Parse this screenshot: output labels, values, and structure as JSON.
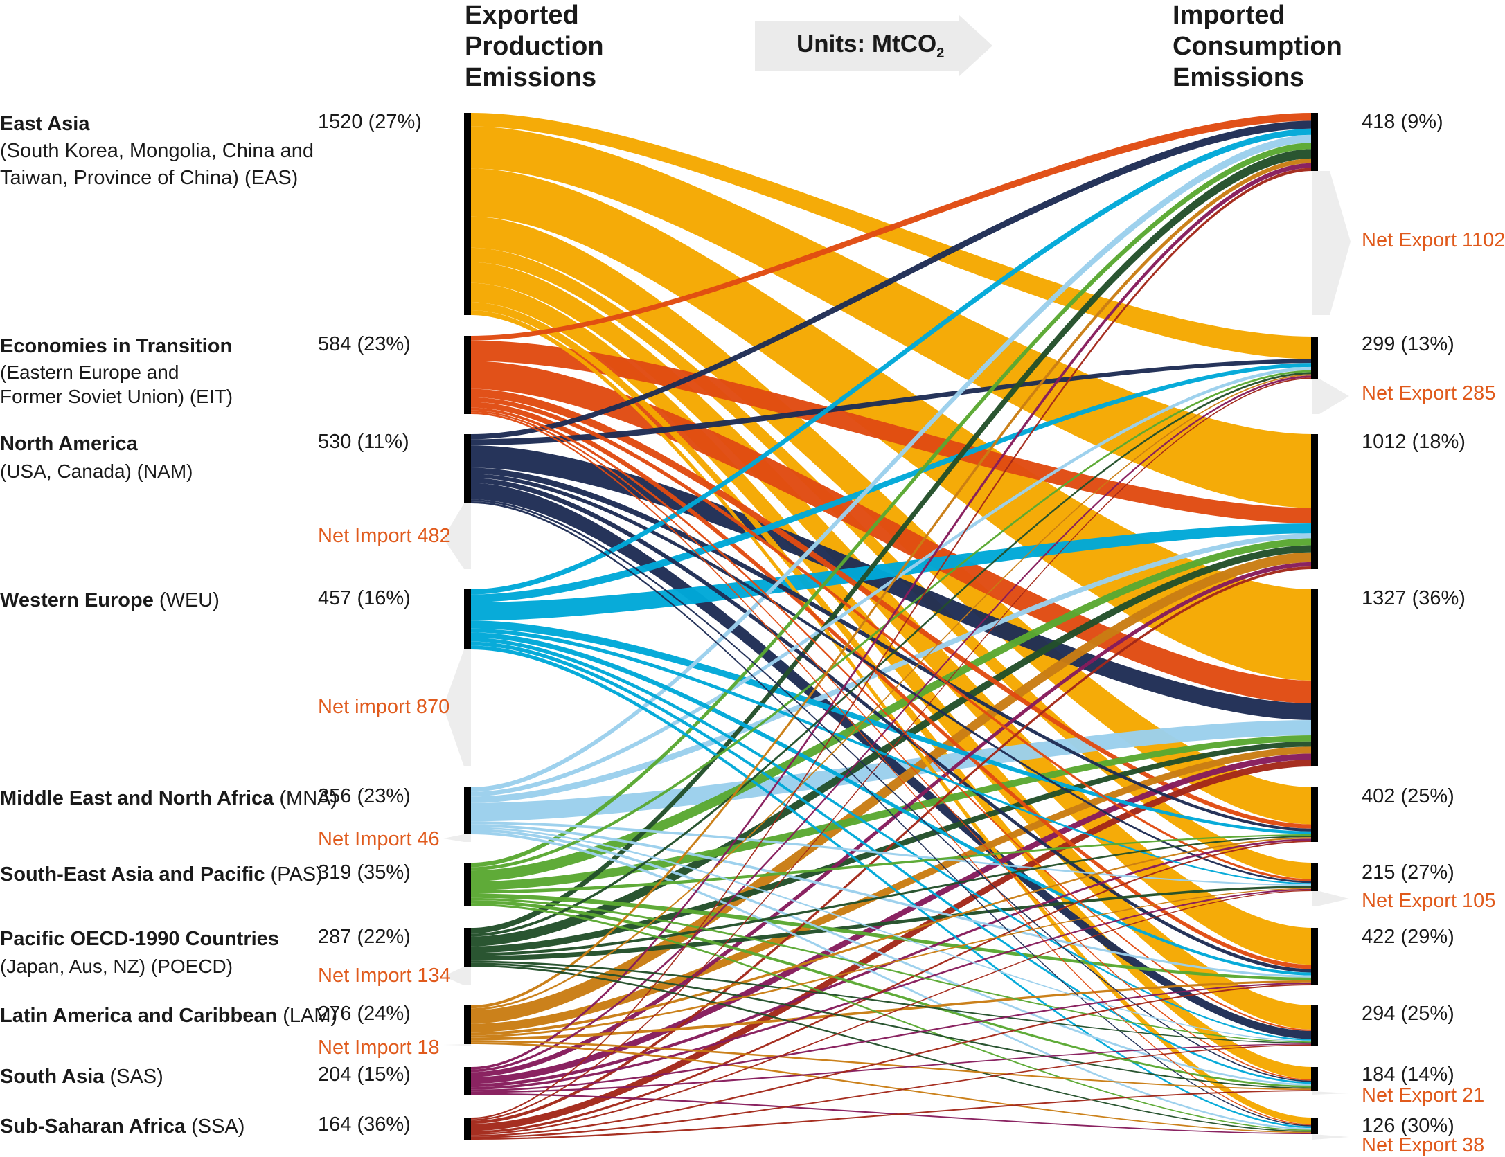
{
  "headers": {
    "left": [
      "Exported",
      "Production",
      "Emissions"
    ],
    "right": [
      "Imported",
      "Consumption",
      "Emissions"
    ],
    "units_prefix": "Units: MtCO",
    "units_sub": "2"
  },
  "colors": {
    "EAS": "#f5a800",
    "EIT": "#e04b12",
    "NAM": "#1f2d55",
    "WEU": "#00a8d8",
    "MNA": "#9bd0ec",
    "PAS": "#5aa832",
    "POECD": "#23502a",
    "LAM": "#c97d14",
    "SAS": "#861c5c",
    "SSA": "#a3281a",
    "net": "#e05a1c",
    "grey": "#ededed"
  },
  "regions": [
    {
      "key": "EAS",
      "name": "East Asia",
      "sub1": "(South Korea, Mongolia, China and",
      "sub2": "Taiwan, Province of China) (EAS)",
      "sub_inline": "",
      "export": "1520 (27%)",
      "import": "418 (9%)",
      "net_text": "Net Export 1102",
      "net_side": "right"
    },
    {
      "key": "EIT",
      "name": "Economies in Transition",
      "sub1": "(Eastern Europe and",
      "sub2": "Former Soviet Union) (EIT)",
      "sub_inline": "",
      "export": "584 (23%)",
      "import": "299 (13%)",
      "net_text": "Net Export 285",
      "net_side": "right"
    },
    {
      "key": "NAM",
      "name": "North America",
      "sub1": "(USA, Canada) (NAM)",
      "sub2": "",
      "sub_inline": "",
      "export": "530 (11%)",
      "import": "1012 (18%)",
      "net_text": "Net Import 482",
      "net_side": "left"
    },
    {
      "key": "WEU",
      "name": "Western Europe",
      "sub1": "",
      "sub2": "",
      "sub_inline": "(WEU)",
      "export": "457 (16%)",
      "import": "1327 (36%)",
      "net_text": "Net import 870",
      "net_side": "left"
    },
    {
      "key": "MNA",
      "name": "Middle East and North Africa",
      "sub1": "",
      "sub2": "",
      "sub_inline": "(MNA)",
      "export": "356 (23%)",
      "import": "402 (25%)",
      "net_text": "Net Import 46",
      "net_side": "left"
    },
    {
      "key": "PAS",
      "name": "South-East Asia and Pacific",
      "sub1": "",
      "sub2": "",
      "sub_inline": "(PAS)",
      "export": "319 (35%)",
      "import": "215 (27%)",
      "net_text": "Net Export 105",
      "net_side": "right"
    },
    {
      "key": "POECD",
      "name": "Pacific OECD-1990 Countries",
      "sub1": "(Japan, Aus, NZ) (POECD)",
      "sub2": "",
      "sub_inline": "",
      "export": "287 (22%)",
      "import": "422 (29%)",
      "net_text": "Net Import 134",
      "net_side": "left"
    },
    {
      "key": "LAM",
      "name": "Latin America and Caribbean",
      "sub1": "",
      "sub2": "",
      "sub_inline": "(LAM)",
      "export": "276 (24%)",
      "import": "294 (25%)",
      "net_text": "Net Import 18",
      "net_side": "left"
    },
    {
      "key": "SAS",
      "name": "South Asia",
      "sub1": "",
      "sub2": "",
      "sub_inline": "(SAS)",
      "export": "204 (15%)",
      "import": "184 (14%)",
      "net_text": "Net Export 21",
      "net_side": "right"
    },
    {
      "key": "SSA",
      "name": "Sub-Saharan Africa",
      "sub1": "",
      "sub2": "",
      "sub_inline": "(SSA)",
      "export": "164 (36%)",
      "import": "126 (30%)",
      "net_text": "Net Export 38",
      "net_side": "right"
    }
  ]
}
